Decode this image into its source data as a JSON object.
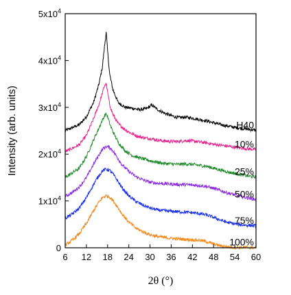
{
  "chart_data": {
    "type": "line",
    "xlabel": "2θ (°)",
    "ylabel": "Intensity (arb. units)",
    "xlim": [
      6,
      60
    ],
    "ylim": [
      0,
      50000
    ],
    "x_ticks": [
      6,
      12,
      18,
      24,
      30,
      36,
      42,
      48,
      54,
      60
    ],
    "x_tick_labels": [
      "6",
      "12",
      "18",
      "24",
      "30",
      "36",
      "42",
      "48",
      "54",
      "60"
    ],
    "y_ticks": [
      0,
      10000,
      20000,
      30000,
      40000,
      50000
    ],
    "y_tick_labels": [
      {
        "base": "0",
        "exp": ""
      },
      {
        "base": "1x10",
        "exp": "4"
      },
      {
        "base": "2x10",
        "exp": "4"
      },
      {
        "base": "3x10",
        "exp": "4"
      },
      {
        "base": "4x10",
        "exp": "4"
      },
      {
        "base": "5x10",
        "exp": "4"
      }
    ],
    "grid": false,
    "legend": "none",
    "series": [
      {
        "name": "H40",
        "color": "#000000",
        "x": [
          6,
          10,
          12,
          14,
          15.5,
          16.5,
          17.2,
          17.6,
          18,
          18.6,
          19.5,
          21,
          23,
          25,
          27,
          29,
          30.5,
          32,
          34,
          36,
          38,
          40,
          42,
          44,
          46,
          48,
          50,
          52,
          54,
          56,
          58,
          60
        ],
        "y": [
          25000,
          26300,
          28000,
          31000,
          34800,
          38500,
          43500,
          46000,
          42000,
          37000,
          33800,
          31000,
          30000,
          29800,
          29500,
          29700,
          30500,
          29600,
          28800,
          28200,
          27800,
          27900,
          27700,
          27400,
          27100,
          26700,
          26300,
          26000,
          25700,
          25500,
          25300,
          25100
        ]
      },
      {
        "name": "10%",
        "color": "#e8208a",
        "x": [
          6,
          10,
          12,
          14,
          15.5,
          16.5,
          17.2,
          17.6,
          18,
          18.6,
          19.5,
          21,
          23,
          25,
          27,
          29,
          30.5,
          32,
          34,
          36,
          38,
          40,
          42,
          44,
          46,
          48,
          50,
          52,
          54,
          56,
          58,
          60
        ],
        "y": [
          20500,
          22000,
          24000,
          27500,
          30500,
          33000,
          34800,
          35000,
          33200,
          30500,
          28500,
          26500,
          25200,
          24300,
          23700,
          23400,
          23300,
          23000,
          22800,
          22700,
          22700,
          22900,
          22800,
          22600,
          22400,
          22100,
          21900,
          21700,
          21500,
          21300,
          21100,
          21000
        ]
      },
      {
        "name": "25%",
        "color": "#1f8a2a",
        "x": [
          6,
          10,
          12,
          14,
          15.5,
          16.5,
          17.2,
          17.6,
          18,
          18.6,
          19.5,
          21,
          23,
          25,
          27,
          29,
          30.5,
          32,
          34,
          36,
          38,
          40,
          42,
          44,
          46,
          48,
          50,
          52,
          54,
          56,
          58,
          60
        ],
        "y": [
          15000,
          17000,
          19500,
          23000,
          25500,
          27200,
          28300,
          28600,
          28000,
          26500,
          24800,
          22500,
          20700,
          19700,
          19200,
          18800,
          18500,
          18300,
          18000,
          17900,
          17800,
          17900,
          17800,
          17600,
          17400,
          17000,
          16600,
          16200,
          15900,
          15600,
          15300,
          15100
        ]
      },
      {
        "name": "50%",
        "color": "#8a2be2",
        "x": [
          6,
          8,
          10,
          12,
          14,
          15.5,
          16.5,
          17.5,
          18.5,
          19.5,
          20.5,
          22,
          24,
          26,
          28,
          30,
          32,
          34,
          36,
          38,
          40,
          42,
          44,
          46,
          48,
          50,
          52,
          54,
          56,
          58,
          60
        ],
        "y": [
          11000,
          11800,
          13000,
          15000,
          17800,
          19800,
          21000,
          21600,
          21500,
          20700,
          19600,
          17800,
          16300,
          15200,
          14500,
          14000,
          13800,
          13700,
          13600,
          13500,
          13500,
          13400,
          13300,
          13100,
          12700,
          12200,
          11700,
          11300,
          10900,
          10600,
          10300
        ]
      },
      {
        "name": "75%",
        "color": "#1a2ee8",
        "x": [
          6,
          8,
          10,
          12,
          14,
          15.5,
          16.5,
          17.5,
          18.5,
          19.5,
          20.5,
          22,
          24,
          26,
          28,
          30,
          32,
          34,
          36,
          38,
          40,
          42,
          44,
          46,
          48,
          50,
          52,
          54,
          56,
          58,
          60
        ],
        "y": [
          6300,
          7200,
          8500,
          10700,
          13500,
          15400,
          16400,
          16800,
          16600,
          15800,
          14700,
          12900,
          11100,
          9900,
          9100,
          8500,
          8100,
          7900,
          7800,
          7700,
          7600,
          7500,
          7300,
          7000,
          6500,
          5900,
          5400,
          5100,
          4900,
          4800,
          4700
        ]
      },
      {
        "name": "100%",
        "color": "#f08a1e",
        "x": [
          6,
          8,
          10,
          12,
          14,
          15.5,
          16.5,
          17.5,
          18.5,
          19.5,
          20.5,
          22,
          24,
          26,
          28,
          30,
          32,
          34,
          36,
          38,
          40,
          42,
          44,
          46,
          48,
          50,
          52,
          54,
          56,
          58,
          60
        ],
        "y": [
          500,
          1600,
          3000,
          5200,
          7900,
          9700,
          10700,
          11100,
          10900,
          10100,
          9100,
          7300,
          5500,
          4200,
          3400,
          2800,
          2400,
          2200,
          2000,
          1900,
          1800,
          1700,
          1600,
          1300,
          800,
          400,
          200,
          100,
          100,
          50,
          50
        ]
      }
    ]
  }
}
